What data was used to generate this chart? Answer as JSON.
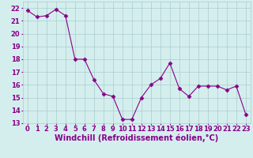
{
  "x": [
    0,
    1,
    2,
    3,
    4,
    5,
    6,
    7,
    8,
    9,
    10,
    11,
    12,
    13,
    14,
    15,
    16,
    17,
    18,
    19,
    20,
    21,
    22,
    23
  ],
  "y": [
    21.8,
    21.3,
    21.4,
    21.9,
    21.4,
    18.0,
    18.0,
    16.4,
    15.3,
    15.1,
    13.3,
    13.3,
    15.0,
    16.0,
    16.5,
    17.7,
    15.7,
    15.1,
    15.9,
    15.9,
    15.9,
    15.6,
    15.9,
    13.7
  ],
  "line_color": "#880088",
  "marker": "D",
  "marker_size": 2.5,
  "bg_color": "#d4eeee",
  "grid_color": "#aacccc",
  "xlabel": "Windchill (Refroidissement éolien,°C)",
  "xlabel_fontsize": 7,
  "tick_fontsize": 6,
  "xlim": [
    -0.5,
    23.5
  ],
  "ylim": [
    13,
    22.5
  ],
  "yticks": [
    13,
    14,
    15,
    16,
    17,
    18,
    19,
    20,
    21,
    22
  ],
  "xticks": [
    0,
    1,
    2,
    3,
    4,
    5,
    6,
    7,
    8,
    9,
    10,
    11,
    12,
    13,
    14,
    15,
    16,
    17,
    18,
    19,
    20,
    21,
    22,
    23
  ]
}
